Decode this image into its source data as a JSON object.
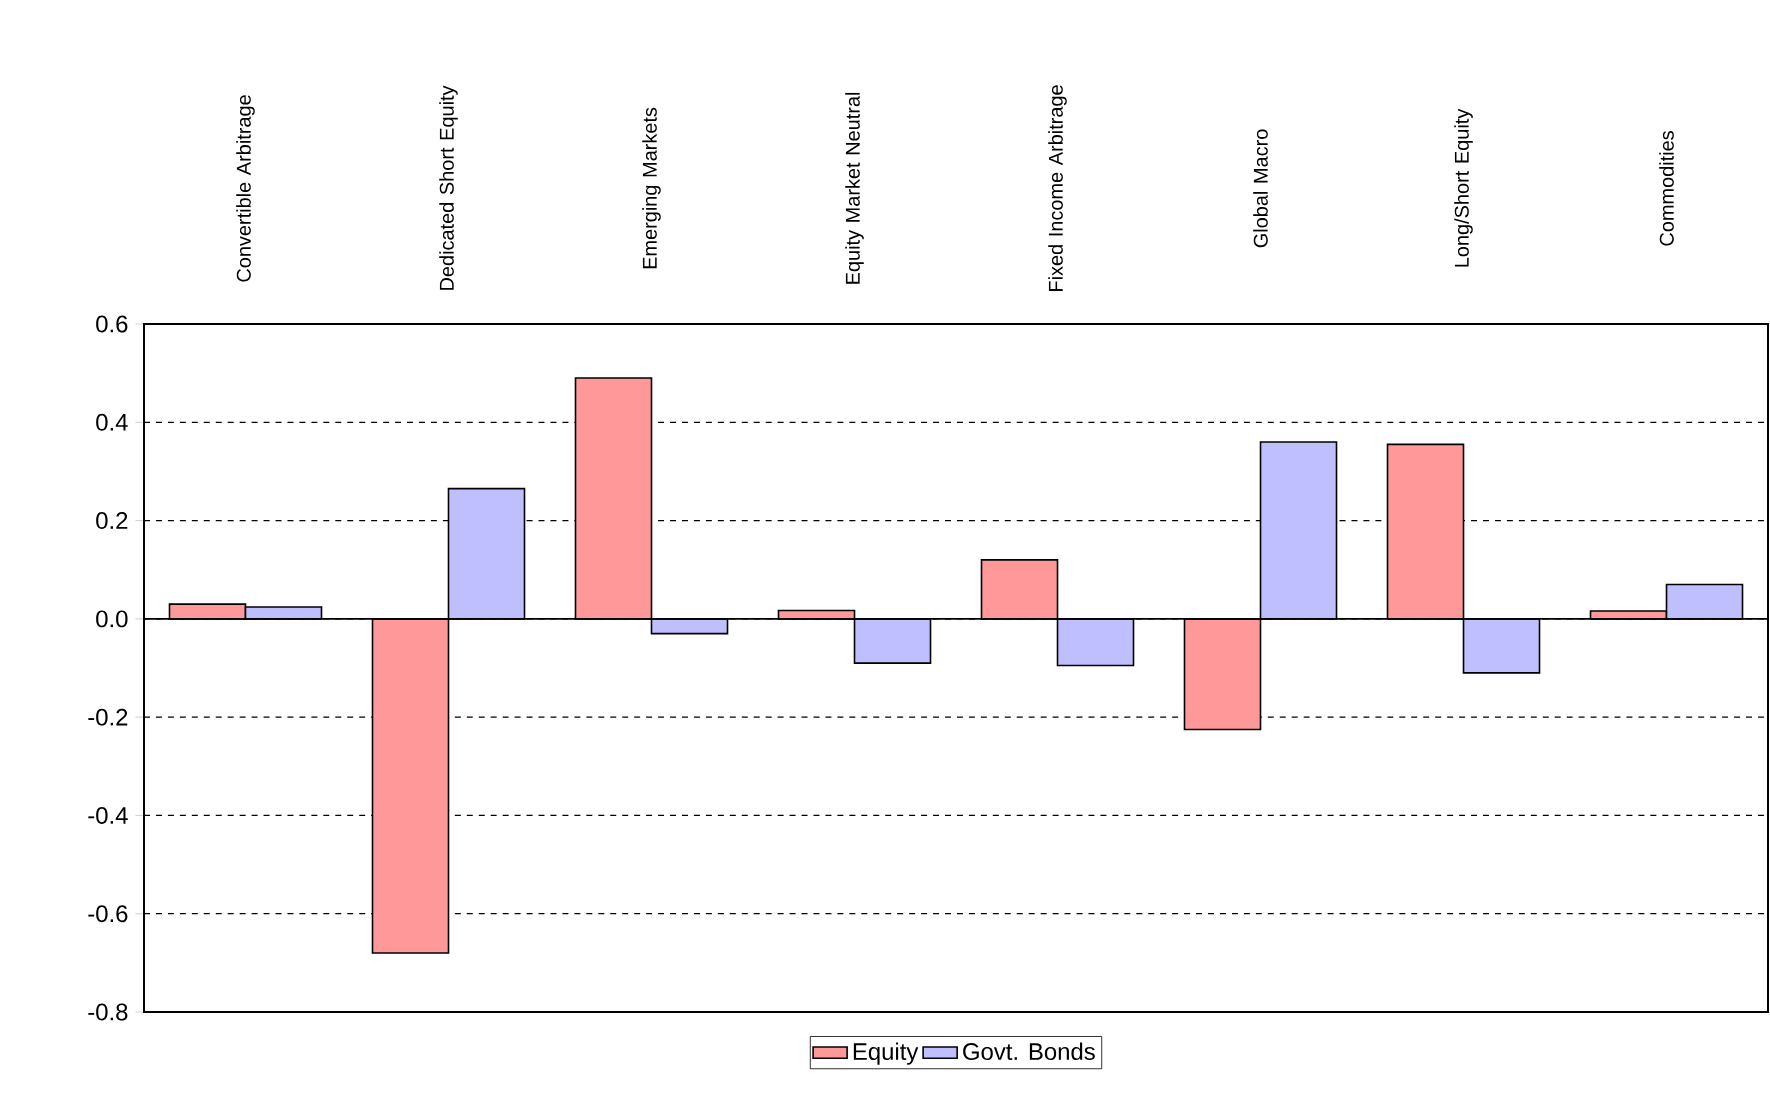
{
  "chart_data": {
    "type": "bar",
    "categories": [
      "Convertible Arbitrage",
      "Dedicated Short Equity",
      "Emerging Markets",
      "Equity Market Neutral",
      "Fixed Income Arbitrage",
      "Global Macro",
      "Long/Short Equity",
      "Commodities"
    ],
    "series": [
      {
        "name": "Equity",
        "color": "#ff9999",
        "values": [
          0.03,
          -0.68,
          0.49,
          0.017,
          0.12,
          -0.225,
          0.355,
          0.016
        ]
      },
      {
        "name": "Govt. Bonds",
        "color": "#bfbfff",
        "values": [
          0.024,
          0.265,
          -0.03,
          -0.09,
          -0.095,
          0.36,
          -0.11,
          0.07
        ]
      }
    ],
    "ylim": [
      -0.8,
      0.6
    ],
    "yticks": [
      {
        "value": -0.8,
        "label": "-0.8"
      },
      {
        "value": -0.6,
        "label": "-0.6"
      },
      {
        "value": -0.4,
        "label": "-0.4"
      },
      {
        "value": -0.2,
        "label": "-0.2"
      },
      {
        "value": 0,
        "label": "0.0"
      },
      {
        "value": 0.2,
        "label": "0.2"
      },
      {
        "value": 0.4,
        "label": "0.4"
      },
      {
        "value": 0.6,
        "label": "0.6"
      }
    ],
    "grid": "y",
    "legend": "bottom"
  }
}
